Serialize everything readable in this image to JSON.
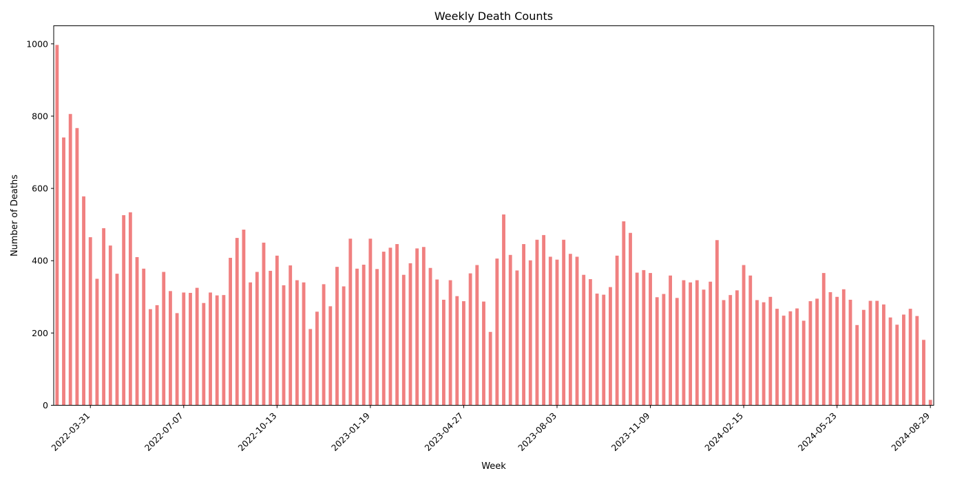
{
  "chart_data": {
    "type": "bar",
    "title": "Weekly Death Counts",
    "xlabel": "Week",
    "ylabel": "Number of Deaths",
    "ylim": [
      0,
      1050
    ],
    "yticks": [
      0,
      200,
      400,
      600,
      800,
      1000
    ],
    "grid": false,
    "legend": "none",
    "bar_color": "#F08080",
    "x_tick_labels": [
      {
        "index": 5,
        "label": "2022-03-31"
      },
      {
        "index": 19,
        "label": "2022-07-07"
      },
      {
        "index": 33,
        "label": "2022-10-13"
      },
      {
        "index": 47,
        "label": "2023-01-19"
      },
      {
        "index": 61,
        "label": "2023-04-27"
      },
      {
        "index": 75,
        "label": "2023-08-03"
      },
      {
        "index": 89,
        "label": "2023-11-09"
      },
      {
        "index": 103,
        "label": "2024-02-15"
      },
      {
        "index": 117,
        "label": "2024-05-23"
      },
      {
        "index": 131,
        "label": "2024-08-29"
      }
    ],
    "values": [
      997,
      741,
      806,
      767,
      578,
      465,
      350,
      490,
      442,
      364,
      526,
      534,
      410,
      378,
      266,
      277,
      369,
      316,
      255,
      312,
      311,
      325,
      283,
      312,
      304,
      305,
      408,
      463,
      486,
      340,
      369,
      450,
      372,
      414,
      332,
      387,
      346,
      340,
      211,
      259,
      335,
      274,
      383,
      329,
      461,
      378,
      389,
      461,
      377,
      425,
      436,
      446,
      361,
      393,
      434,
      438,
      380,
      348,
      292,
      346,
      302,
      288,
      365,
      388,
      287,
      203,
      406,
      528,
      416,
      373,
      446,
      401,
      458,
      471,
      411,
      403,
      458,
      419,
      411,
      361,
      349,
      309,
      306,
      327,
      414,
      509,
      477,
      367,
      374,
      366,
      299,
      308,
      359,
      297,
      346,
      340,
      346,
      320,
      342,
      457,
      291,
      305,
      318,
      388,
      359,
      291,
      285,
      300,
      267,
      248,
      260,
      268,
      234,
      288,
      295,
      366,
      313,
      300,
      321,
      292,
      222,
      264,
      289,
      289,
      279,
      243,
      223,
      251,
      267,
      247,
      181,
      15
    ]
  }
}
